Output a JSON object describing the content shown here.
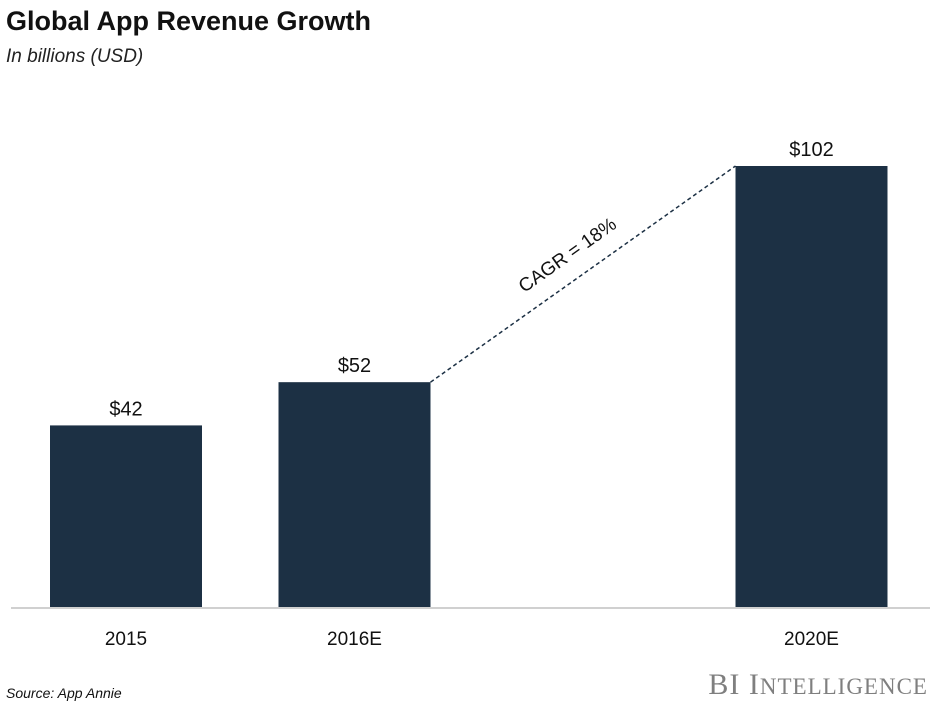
{
  "chart_data": {
    "type": "bar",
    "title": "Global App Revenue Growth",
    "subtitle": "In billions (USD)",
    "categories": [
      "2015",
      "2016E",
      "2020E"
    ],
    "values": [
      42,
      52,
      102
    ],
    "data_labels": [
      "$42",
      "$52",
      "$102"
    ],
    "annotation": "CAGR = 18%",
    "xlabel": "",
    "ylabel": "",
    "ylim": [
      0,
      102
    ],
    "grid": false,
    "bar_color": "#1c3044",
    "source": "Source: App Annie"
  },
  "logo": {
    "bi": "BI",
    "intelligence_first": "I",
    "intelligence_rest": "NTELLIGENCE"
  }
}
